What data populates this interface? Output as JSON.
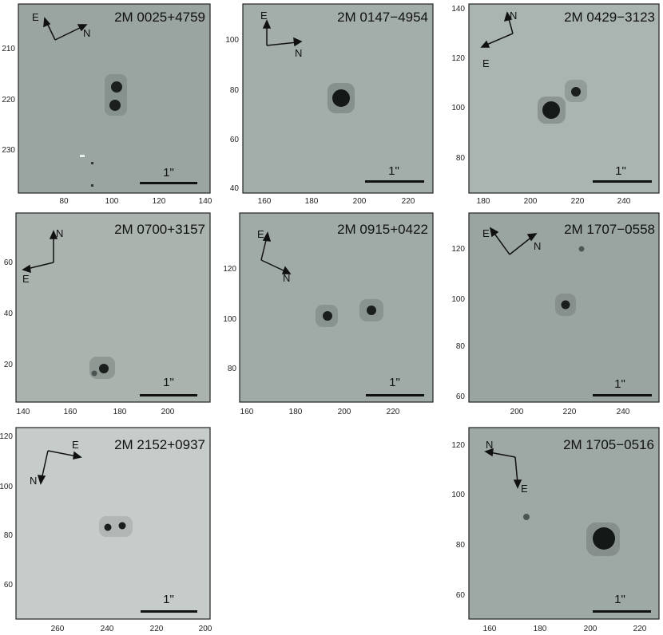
{
  "scale_label": "1\"",
  "panels": [
    {
      "id": "p1",
      "title": "2M 0025+4759",
      "x_ticks": [
        "80",
        "100",
        "120",
        "140"
      ],
      "y_ticks": [
        "210",
        "220",
        "230"
      ],
      "compass": {
        "e_label": "E",
        "n_label": "N"
      },
      "bg": "#9aa4a0"
    },
    {
      "id": "p2",
      "title": "2M 0147−4954",
      "x_ticks": [
        "160",
        "180",
        "200",
        "220"
      ],
      "y_ticks": [
        "100",
        "80",
        "60",
        "40"
      ],
      "compass": {
        "e_label": "E",
        "n_label": "N"
      },
      "bg": "#a3aeaa"
    },
    {
      "id": "p3",
      "title": "2M 0429−3123",
      "x_ticks": [
        "180",
        "200",
        "220",
        "240"
      ],
      "y_ticks": [
        "140",
        "120",
        "100",
        "80"
      ],
      "compass": {
        "e_label": "E",
        "n_label": "N"
      },
      "bg": "#aab5b1"
    },
    {
      "id": "p4",
      "title": "2M 0700+3157",
      "x_ticks": [
        "140",
        "160",
        "180",
        "200"
      ],
      "y_ticks": [
        "60",
        "40",
        "20"
      ],
      "compass": {
        "e_label": "E",
        "n_label": "N"
      },
      "bg": "#aab3ae"
    },
    {
      "id": "p5",
      "title": "2M 0915+0422",
      "x_ticks": [
        "160",
        "180",
        "200",
        "220"
      ],
      "y_ticks": [
        "120",
        "100",
        "80"
      ],
      "compass": {
        "e_label": "E",
        "n_label": "N"
      },
      "bg": "#a0aba7"
    },
    {
      "id": "p6",
      "title": "2M 1707−0558",
      "x_ticks": [
        "200",
        "220",
        "240"
      ],
      "y_ticks": [
        "120",
        "100",
        "80",
        "60"
      ],
      "compass": {
        "e_label": "E",
        "n_label": "N"
      },
      "bg": "#9aa5a1"
    },
    {
      "id": "p7",
      "title": "2M 2152+0937",
      "x_ticks": [
        "260",
        "240",
        "220",
        "200"
      ],
      "y_ticks": [
        "120",
        "100",
        "80",
        "60"
      ],
      "compass": {
        "e_label": "E",
        "n_label": "N"
      },
      "bg": "#c6ccca"
    },
    {
      "id": "p8",
      "title": "2M 1705−0516",
      "x_ticks": [
        "160",
        "180",
        "200",
        "220"
      ],
      "y_ticks": [
        "120",
        "100",
        "80",
        "60"
      ],
      "compass": {
        "e_label": "E",
        "n_label": "N"
      },
      "bg": "#9ea8a4"
    }
  ]
}
